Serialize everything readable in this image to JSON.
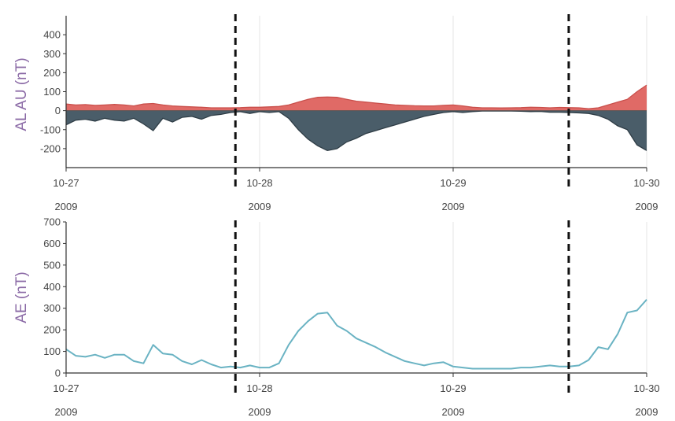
{
  "colors": {
    "au_fill": "#e06a66",
    "au_line": "#c94f4b",
    "al_fill": "#4a5d69",
    "al_line": "#2f3d46",
    "ae_line": "#6ab3c3",
    "grid": "#e6e6e6",
    "axis": "#333333",
    "marker": "#111111",
    "label": "#8b6aa6"
  },
  "x_ticks": [
    {
      "day": 0,
      "date": "10-27",
      "year": "2009"
    },
    {
      "day": 1,
      "date": "10-28",
      "year": "2009"
    },
    {
      "day": 2,
      "date": "10-29",
      "year": "2009"
    },
    {
      "day": 3,
      "date": "10-30",
      "year": "2009"
    }
  ],
  "chart_data": [
    {
      "type": "area",
      "ylabel": "AL AU (nT)",
      "ylim": [
        -300,
        500
      ],
      "yticks": [
        -200,
        -100,
        0,
        100,
        200,
        300,
        400
      ],
      "xlim": [
        "2009-10-27",
        "2009-10-30"
      ],
      "grid": true,
      "vertical_markers": [
        "2009-10-27 21:00",
        "2009-10-29 14:20"
      ],
      "series": [
        {
          "x": [
            0,
            0.05,
            0.1,
            0.15,
            0.2,
            0.25,
            0.3,
            0.35,
            0.4,
            0.45,
            0.5,
            0.55,
            0.6,
            0.65,
            0.7,
            0.75,
            0.8,
            0.85,
            0.9,
            0.95,
            1.0,
            1.05,
            1.1,
            1.15,
            1.2,
            1.25,
            1.3,
            1.35,
            1.4,
            1.45,
            1.5,
            1.55,
            1.6,
            1.65,
            1.7,
            1.75,
            1.8,
            1.85,
            1.9,
            1.95,
            2.0,
            2.05,
            2.1,
            2.15,
            2.2,
            2.25,
            2.3,
            2.35,
            2.4,
            2.45,
            2.5,
            2.55,
            2.6,
            2.65,
            2.7,
            2.75,
            2.8,
            2.85,
            2.9,
            2.95,
            3.0
          ],
          "values": [
            35,
            30,
            32,
            28,
            30,
            33,
            30,
            25,
            35,
            38,
            30,
            25,
            22,
            20,
            18,
            15,
            15,
            15,
            16,
            18,
            18,
            20,
            22,
            30,
            45,
            60,
            70,
            72,
            70,
            60,
            50,
            45,
            40,
            35,
            30,
            28,
            26,
            25,
            25,
            28,
            30,
            25,
            18,
            15,
            15,
            14,
            15,
            16,
            18,
            17,
            15,
            17,
            16,
            15,
            10,
            15,
            30,
            45,
            60,
            100,
            135
          ]
        },
        {
          "x": [
            0,
            0.05,
            0.1,
            0.15,
            0.2,
            0.25,
            0.3,
            0.35,
            0.4,
            0.45,
            0.5,
            0.55,
            0.6,
            0.65,
            0.7,
            0.75,
            0.8,
            0.85,
            0.9,
            0.95,
            1.0,
            1.05,
            1.1,
            1.15,
            1.2,
            1.25,
            1.3,
            1.35,
            1.4,
            1.45,
            1.5,
            1.55,
            1.6,
            1.65,
            1.7,
            1.75,
            1.8,
            1.85,
            1.9,
            1.95,
            2.0,
            2.05,
            2.1,
            2.15,
            2.2,
            2.25,
            2.3,
            2.35,
            2.4,
            2.45,
            2.5,
            2.55,
            2.6,
            2.65,
            2.7,
            2.75,
            2.8,
            2.85,
            2.9,
            2.95,
            3.0
          ],
          "values": [
            -75,
            -50,
            -45,
            -55,
            -40,
            -50,
            -55,
            -40,
            -70,
            -105,
            -40,
            -60,
            -35,
            -30,
            -45,
            -25,
            -20,
            -10,
            -5,
            -15,
            -5,
            -10,
            -5,
            -40,
            -100,
            -150,
            -185,
            -210,
            -200,
            -165,
            -145,
            -120,
            -105,
            -90,
            -75,
            -60,
            -45,
            -30,
            -20,
            -10,
            -5,
            -10,
            -5,
            -2,
            -2,
            -2,
            -2,
            -3,
            -5,
            -4,
            -8,
            -8,
            -10,
            -12,
            -15,
            -25,
            -45,
            -80,
            -100,
            -180,
            -210
          ]
        }
      ]
    },
    {
      "type": "line",
      "ylabel": "AE (nT)",
      "ylim": [
        0,
        700
      ],
      "yticks": [
        0,
        100,
        200,
        300,
        400,
        500,
        600,
        700
      ],
      "xlim": [
        "2009-10-27",
        "2009-10-30"
      ],
      "grid": true,
      "vertical_markers": [
        "2009-10-27 21:00",
        "2009-10-29 14:20"
      ],
      "series": [
        {
          "x": [
            0,
            0.05,
            0.1,
            0.15,
            0.2,
            0.25,
            0.3,
            0.35,
            0.4,
            0.45,
            0.5,
            0.55,
            0.6,
            0.65,
            0.7,
            0.75,
            0.8,
            0.85,
            0.9,
            0.95,
            1.0,
            1.05,
            1.1,
            1.15,
            1.2,
            1.25,
            1.3,
            1.35,
            1.4,
            1.45,
            1.5,
            1.55,
            1.6,
            1.65,
            1.7,
            1.75,
            1.8,
            1.85,
            1.9,
            1.95,
            2.0,
            2.05,
            2.1,
            2.15,
            2.2,
            2.25,
            2.3,
            2.35,
            2.4,
            2.45,
            2.5,
            2.55,
            2.6,
            2.65,
            2.7,
            2.75,
            2.8,
            2.85,
            2.9,
            2.95,
            3.0
          ],
          "values": [
            110,
            80,
            75,
            85,
            70,
            85,
            85,
            55,
            45,
            130,
            90,
            85,
            55,
            40,
            60,
            40,
            25,
            30,
            25,
            35,
            25,
            25,
            45,
            130,
            195,
            240,
            275,
            280,
            220,
            195,
            160,
            140,
            120,
            95,
            75,
            55,
            45,
            35,
            45,
            50,
            30,
            25,
            20,
            20,
            20,
            20,
            20,
            25,
            25,
            30,
            35,
            30,
            30,
            35,
            60,
            120,
            110,
            180,
            280,
            290,
            340
          ]
        }
      ]
    }
  ]
}
